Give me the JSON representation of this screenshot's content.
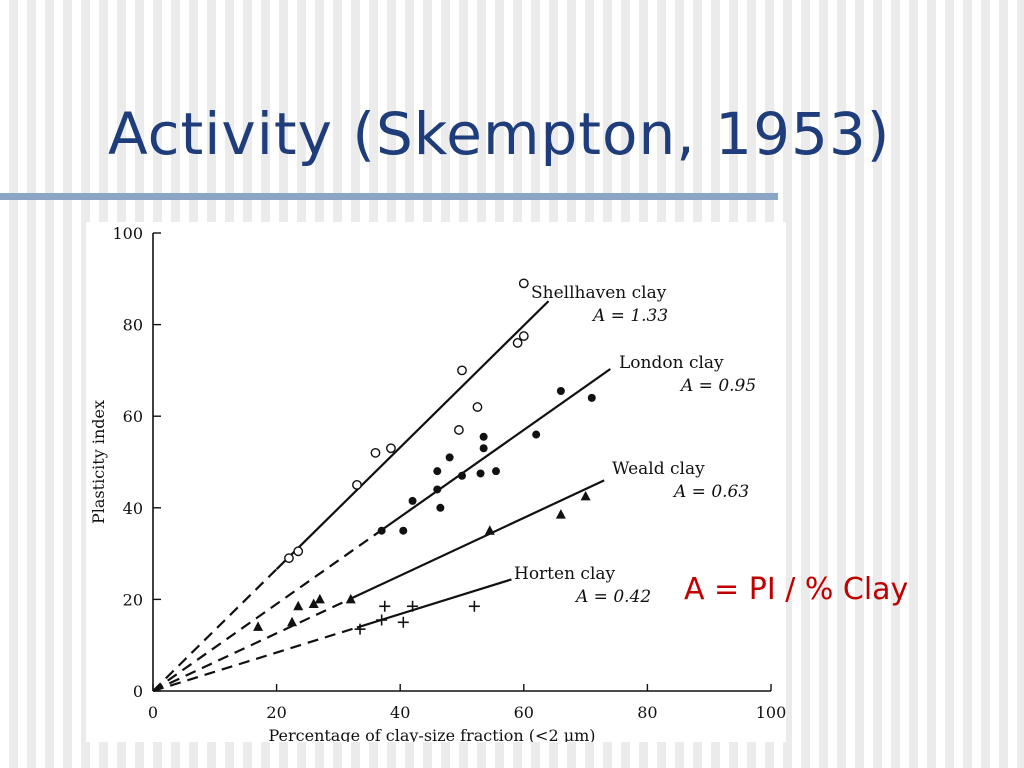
{
  "slide": {
    "title": "Activity (Skempton, 1953)",
    "formula": "A = PI / % Clay",
    "title_color": "#1f3d7a",
    "formula_color": "#c00000",
    "rule_color": "#8aa5c6"
  },
  "chart_data": {
    "type": "scatter",
    "xlabel": "Percentage of clay-size fraction (<2 μm)",
    "ylabel": "Plasticity index",
    "xlim": [
      0,
      100
    ],
    "ylim": [
      0,
      100
    ],
    "xticks": [
      0,
      20,
      40,
      60,
      80,
      100
    ],
    "yticks": [
      0,
      20,
      40,
      60,
      80,
      100
    ],
    "grid": false,
    "series": [
      {
        "name": "Shellhaven clay",
        "activity_label": "A = 1.33",
        "activity": 1.33,
        "marker": "open-circle",
        "fit_dashed_x": [
          0,
          20
        ],
        "fit_solid_x": [
          20,
          64
        ],
        "points": [
          [
            22,
            29
          ],
          [
            23.5,
            30.5
          ],
          [
            33,
            45
          ],
          [
            36,
            52
          ],
          [
            38.5,
            53
          ],
          [
            49.5,
            57
          ],
          [
            50,
            70
          ],
          [
            52.5,
            62
          ],
          [
            59,
            76
          ],
          [
            60,
            77.5
          ],
          [
            60,
            89
          ]
        ]
      },
      {
        "name": "London clay",
        "activity_label": "A = 0.95",
        "activity": 0.95,
        "marker": "filled-circle",
        "fit_dashed_x": [
          0,
          37
        ],
        "fit_solid_x": [
          37,
          74
        ],
        "points": [
          [
            37,
            35
          ],
          [
            40.5,
            35
          ],
          [
            42,
            41.5
          ],
          [
            46,
            48
          ],
          [
            46,
            44
          ],
          [
            46.5,
            40
          ],
          [
            48,
            51
          ],
          [
            50,
            47
          ],
          [
            53,
            47.5
          ],
          [
            53.5,
            55.5
          ],
          [
            53.5,
            53
          ],
          [
            55.5,
            48
          ],
          [
            62,
            56
          ],
          [
            66,
            65.5
          ],
          [
            71,
            64
          ]
        ]
      },
      {
        "name": "Weald clay",
        "activity_label": "A = 0.63",
        "activity": 0.63,
        "marker": "filled-triangle",
        "fit_dashed_x": [
          0,
          32
        ],
        "fit_solid_x": [
          32,
          73
        ],
        "points": [
          [
            17,
            14
          ],
          [
            22.5,
            15
          ],
          [
            23.5,
            18.5
          ],
          [
            26,
            19
          ],
          [
            27,
            20
          ],
          [
            32,
            20
          ],
          [
            54.5,
            35
          ],
          [
            66,
            38.5
          ],
          [
            70,
            42.5
          ]
        ]
      },
      {
        "name": "Horten clay",
        "activity_label": "A = 0.42",
        "activity": 0.42,
        "marker": "plus",
        "fit_dashed_x": [
          0,
          33
        ],
        "fit_solid_x": [
          33,
          58
        ],
        "points": [
          [
            33.5,
            13.5
          ],
          [
            37,
            15.5
          ],
          [
            37.5,
            18.5
          ],
          [
            40.5,
            15
          ],
          [
            42,
            18.5
          ],
          [
            52,
            18.5
          ]
        ]
      }
    ]
  }
}
